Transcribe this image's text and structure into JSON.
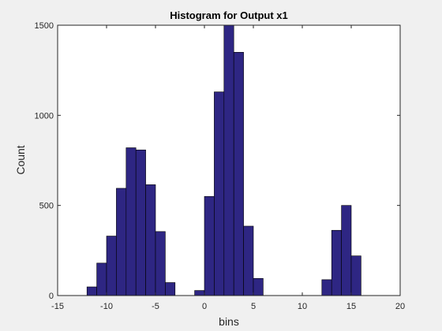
{
  "chart_data": {
    "type": "bar",
    "title": "Histogram for Output x1",
    "xlabel": "bins",
    "ylabel": "Count",
    "xlim": [
      -15,
      20
    ],
    "ylim": [
      0,
      1500
    ],
    "xticks": [
      -15,
      -10,
      -5,
      0,
      5,
      10,
      15,
      20
    ],
    "yticks": [
      0,
      500,
      1000,
      1500
    ],
    "grid": false,
    "bin_width": 1,
    "bar_color": "#2e2683",
    "edge_color": "#000000",
    "bins": [
      {
        "center": -11.5,
        "count": 48
      },
      {
        "center": -10.5,
        "count": 180
      },
      {
        "center": -9.5,
        "count": 330
      },
      {
        "center": -8.5,
        "count": 595
      },
      {
        "center": -7.5,
        "count": 820
      },
      {
        "center": -6.5,
        "count": 808
      },
      {
        "center": -5.5,
        "count": 615
      },
      {
        "center": -4.5,
        "count": 355
      },
      {
        "center": -3.5,
        "count": 72
      },
      {
        "center": -0.5,
        "count": 28
      },
      {
        "center": 0.5,
        "count": 550
      },
      {
        "center": 1.5,
        "count": 1130
      },
      {
        "center": 2.5,
        "count": 1500
      },
      {
        "center": 3.5,
        "count": 1350
      },
      {
        "center": 4.5,
        "count": 385
      },
      {
        "center": 5.5,
        "count": 95
      },
      {
        "center": 12.5,
        "count": 88
      },
      {
        "center": 13.5,
        "count": 362
      },
      {
        "center": 14.5,
        "count": 500
      },
      {
        "center": 15.5,
        "count": 220
      }
    ]
  }
}
